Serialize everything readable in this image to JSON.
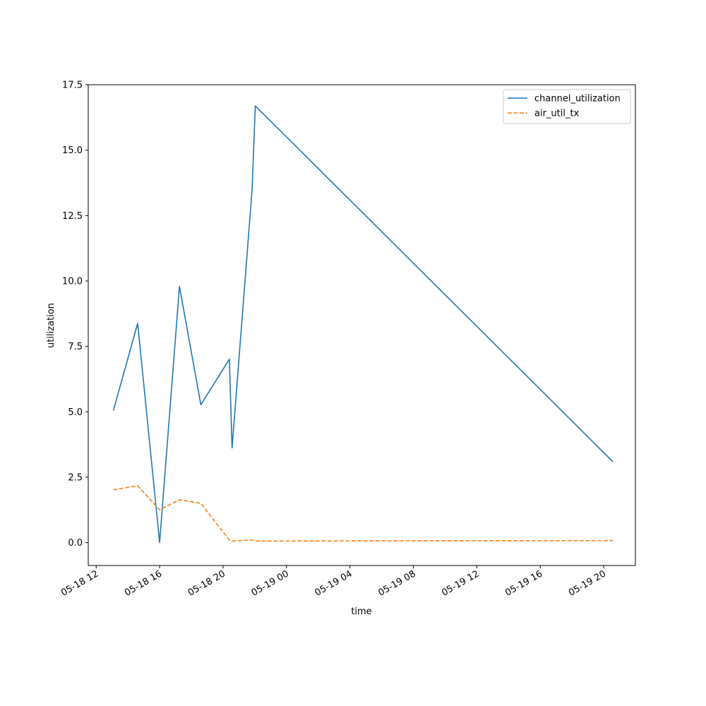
{
  "chart_data": {
    "type": "line",
    "title": "",
    "xlabel": "time",
    "ylabel": "utilization",
    "xlim": [
      "2024-05-18 11:30",
      "2024-05-19 22:00"
    ],
    "ylim": [
      -0.875,
      17.5
    ],
    "x_ticks": [
      {
        "t": "2024-05-18 12:00",
        "label": "05-18 12"
      },
      {
        "t": "2024-05-18 16:00",
        "label": "05-18 16"
      },
      {
        "t": "2024-05-18 20:00",
        "label": "05-18 20"
      },
      {
        "t": "2024-05-19 00:00",
        "label": "05-19 00"
      },
      {
        "t": "2024-05-19 04:00",
        "label": "05-19 04"
      },
      {
        "t": "2024-05-19 08:00",
        "label": "05-19 08"
      },
      {
        "t": "2024-05-19 12:00",
        "label": "05-19 12"
      },
      {
        "t": "2024-05-19 16:00",
        "label": "05-19 16"
      },
      {
        "t": "2024-05-19 20:00",
        "label": "05-19 20"
      }
    ],
    "y_ticks": [
      {
        "v": 0,
        "label": "0.0"
      },
      {
        "v": 2.5,
        "label": "2.5"
      },
      {
        "v": 5,
        "label": "5.0"
      },
      {
        "v": 7.5,
        "label": "7.5"
      },
      {
        "v": 10,
        "label": "10.0"
      },
      {
        "v": 12.5,
        "label": "12.5"
      },
      {
        "v": 15,
        "label": "15.0"
      },
      {
        "v": 17.5,
        "label": "17.5"
      }
    ],
    "grid": false,
    "legend_position": "top-right",
    "series": [
      {
        "name": "channel_utilization",
        "color": "#1f77b4",
        "dash": "solid",
        "points": [
          {
            "t": "2024-05-18 13:05",
            "y": 5.05
          },
          {
            "t": "2024-05-18 14:37",
            "y": 8.38
          },
          {
            "t": "2024-05-18 16:00",
            "y": 0.0
          },
          {
            "t": "2024-05-18 17:15",
            "y": 9.79
          },
          {
            "t": "2024-05-18 18:36",
            "y": 5.27
          },
          {
            "t": "2024-05-18 20:24",
            "y": 7.01
          },
          {
            "t": "2024-05-18 20:34",
            "y": 3.62
          },
          {
            "t": "2024-05-18 21:50",
            "y": 13.5
          },
          {
            "t": "2024-05-18 22:02",
            "y": 16.69
          },
          {
            "t": "2024-05-19 20:35",
            "y": 3.09
          }
        ]
      },
      {
        "name": "air_util_tx",
        "color": "#ff7f0e",
        "dash": "dashed",
        "points": [
          {
            "t": "2024-05-18 13:05",
            "y": 2.02
          },
          {
            "t": "2024-05-18 14:37",
            "y": 2.17
          },
          {
            "t": "2024-05-18 16:00",
            "y": 1.25
          },
          {
            "t": "2024-05-18 17:15",
            "y": 1.64
          },
          {
            "t": "2024-05-18 18:36",
            "y": 1.5
          },
          {
            "t": "2024-05-18 20:24",
            "y": 0.1
          },
          {
            "t": "2024-05-18 20:34",
            "y": 0.06
          },
          {
            "t": "2024-05-18 21:50",
            "y": 0.1
          },
          {
            "t": "2024-05-18 22:02",
            "y": 0.06
          },
          {
            "t": "2024-05-19 20:35",
            "y": 0.08
          }
        ]
      }
    ]
  }
}
